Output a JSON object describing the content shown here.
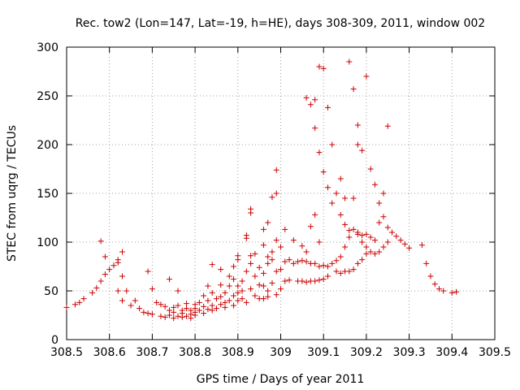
{
  "chart_data": {
    "type": "scatter",
    "title": "Rec. tow2 (Lon=147, Lat=-19, h=HE), days 308-309, 2011, window 002",
    "xlabel": "GPS time / Days of year 2011",
    "ylabel": "STEC from uqrg / TECUs",
    "xlim": [
      308.5,
      309.5
    ],
    "ylim": [
      0,
      300
    ],
    "xticks": [
      308.5,
      308.6,
      308.7,
      308.8,
      308.9,
      309,
      309.1,
      309.2,
      309.3,
      309.4,
      309.5
    ],
    "xtick_labels": [
      "308.5",
      "308.6",
      "308.7",
      "308.8",
      "308.9",
      "309",
      "309.1",
      "309.2",
      "309.3",
      "309.4",
      "309.5"
    ],
    "yticks": [
      0,
      50,
      100,
      150,
      200,
      250,
      300
    ],
    "ytick_labels": [
      "0",
      "50",
      "100",
      "150",
      "200",
      "250",
      "300"
    ],
    "marker": "+",
    "color": "#cc0000",
    "points": [
      [
        308.5,
        33
      ],
      [
        308.52,
        36
      ],
      [
        308.53,
        38
      ],
      [
        308.54,
        42
      ],
      [
        308.56,
        48
      ],
      [
        308.57,
        53
      ],
      [
        308.58,
        60
      ],
      [
        308.58,
        101
      ],
      [
        308.59,
        85
      ],
      [
        308.59,
        67
      ],
      [
        308.6,
        72
      ],
      [
        308.61,
        76
      ],
      [
        308.62,
        82
      ],
      [
        308.62,
        79
      ],
      [
        308.62,
        50
      ],
      [
        308.63,
        90
      ],
      [
        308.63,
        65
      ],
      [
        308.63,
        40
      ],
      [
        308.64,
        50
      ],
      [
        308.65,
        35
      ],
      [
        308.66,
        40
      ],
      [
        308.67,
        32
      ],
      [
        308.68,
        28
      ],
      [
        308.69,
        70
      ],
      [
        308.69,
        27
      ],
      [
        308.7,
        52
      ],
      [
        308.7,
        26
      ],
      [
        308.71,
        38
      ],
      [
        308.72,
        24
      ],
      [
        308.72,
        36
      ],
      [
        308.73,
        23
      ],
      [
        308.73,
        34
      ],
      [
        308.74,
        25
      ],
      [
        308.74,
        30
      ],
      [
        308.74,
        62
      ],
      [
        308.75,
        22
      ],
      [
        308.75,
        33
      ],
      [
        308.75,
        28
      ],
      [
        308.76,
        50
      ],
      [
        308.76,
        24
      ],
      [
        308.76,
        35
      ],
      [
        308.77,
        30
      ],
      [
        308.77,
        23
      ],
      [
        308.77,
        27
      ],
      [
        308.78,
        24
      ],
      [
        308.78,
        32
      ],
      [
        308.78,
        37
      ],
      [
        308.79,
        26
      ],
      [
        308.79,
        30
      ],
      [
        308.79,
        22
      ],
      [
        308.8,
        36
      ],
      [
        308.8,
        32
      ],
      [
        308.8,
        25
      ],
      [
        308.8,
        28
      ],
      [
        308.81,
        38
      ],
      [
        308.81,
        30
      ],
      [
        308.82,
        45
      ],
      [
        308.82,
        34
      ],
      [
        308.82,
        27
      ],
      [
        308.83,
        40
      ],
      [
        308.83,
        55
      ],
      [
        308.83,
        31
      ],
      [
        308.84,
        77
      ],
      [
        308.84,
        48
      ],
      [
        308.84,
        35
      ],
      [
        308.84,
        30
      ],
      [
        308.85,
        42
      ],
      [
        308.85,
        32
      ],
      [
        308.86,
        72
      ],
      [
        308.86,
        56
      ],
      [
        308.86,
        44
      ],
      [
        308.86,
        36
      ],
      [
        308.87,
        48
      ],
      [
        308.87,
        38
      ],
      [
        308.87,
        33
      ],
      [
        308.88,
        65
      ],
      [
        308.88,
        55
      ],
      [
        308.88,
        40
      ],
      [
        308.89,
        75
      ],
      [
        308.89,
        62
      ],
      [
        308.89,
        45
      ],
      [
        308.89,
        35
      ],
      [
        308.9,
        86
      ],
      [
        308.9,
        82
      ],
      [
        308.9,
        55
      ],
      [
        308.9,
        48
      ],
      [
        308.9,
        40
      ],
      [
        308.91,
        60
      ],
      [
        308.91,
        50
      ],
      [
        308.91,
        42
      ],
      [
        308.92,
        107
      ],
      [
        308.92,
        104
      ],
      [
        308.92,
        70
      ],
      [
        308.92,
        38
      ],
      [
        308.93,
        134
      ],
      [
        308.93,
        130
      ],
      [
        308.93,
        86
      ],
      [
        308.93,
        78
      ],
      [
        308.93,
        52
      ],
      [
        308.94,
        88
      ],
      [
        308.94,
        65
      ],
      [
        308.94,
        45
      ],
      [
        308.95,
        74
      ],
      [
        308.95,
        56
      ],
      [
        308.95,
        42
      ],
      [
        308.96,
        113
      ],
      [
        308.96,
        97
      ],
      [
        308.96,
        68
      ],
      [
        308.96,
        55
      ],
      [
        308.96,
        42
      ],
      [
        308.97,
        120
      ],
      [
        308.97,
        85
      ],
      [
        308.97,
        78
      ],
      [
        308.97,
        50
      ],
      [
        308.97,
        44
      ],
      [
        308.98,
        146
      ],
      [
        308.98,
        90
      ],
      [
        308.98,
        82
      ],
      [
        308.98,
        58
      ],
      [
        308.99,
        174
      ],
      [
        308.99,
        150
      ],
      [
        308.99,
        102
      ],
      [
        308.99,
        70
      ],
      [
        308.99,
        46
      ],
      [
        309.0,
        95
      ],
      [
        309.0,
        72
      ],
      [
        309.0,
        52
      ],
      [
        309.01,
        113
      ],
      [
        309.01,
        80
      ],
      [
        309.01,
        60
      ],
      [
        309.02,
        82
      ],
      [
        309.02,
        61
      ],
      [
        309.03,
        102
      ],
      [
        309.03,
        78
      ],
      [
        309.04,
        80
      ],
      [
        309.04,
        60
      ],
      [
        309.05,
        96
      ],
      [
        309.05,
        81
      ],
      [
        309.05,
        60
      ],
      [
        309.06,
        248
      ],
      [
        309.06,
        90
      ],
      [
        309.06,
        80
      ],
      [
        309.06,
        59
      ],
      [
        309.07,
        241
      ],
      [
        309.07,
        116
      ],
      [
        309.07,
        78
      ],
      [
        309.07,
        60
      ],
      [
        309.08,
        246
      ],
      [
        309.08,
        217
      ],
      [
        309.08,
        128
      ],
      [
        309.08,
        78
      ],
      [
        309.08,
        60
      ],
      [
        309.09,
        280
      ],
      [
        309.09,
        192
      ],
      [
        309.09,
        100
      ],
      [
        309.09,
        75
      ],
      [
        309.09,
        61
      ],
      [
        309.1,
        278
      ],
      [
        309.1,
        172
      ],
      [
        309.1,
        76
      ],
      [
        309.1,
        62
      ],
      [
        309.11,
        238
      ],
      [
        309.11,
        156
      ],
      [
        309.11,
        75
      ],
      [
        309.11,
        65
      ],
      [
        309.12,
        200
      ],
      [
        309.12,
        140
      ],
      [
        309.12,
        78
      ],
      [
        309.13,
        150
      ],
      [
        309.13,
        81
      ],
      [
        309.13,
        70
      ],
      [
        309.14,
        165
      ],
      [
        309.14,
        128
      ],
      [
        309.14,
        85
      ],
      [
        309.14,
        68
      ],
      [
        309.15,
        145
      ],
      [
        309.15,
        118
      ],
      [
        309.15,
        95
      ],
      [
        309.15,
        70
      ],
      [
        309.16,
        285
      ],
      [
        309.16,
        112
      ],
      [
        309.16,
        105
      ],
      [
        309.16,
        70
      ],
      [
        309.17,
        257
      ],
      [
        309.17,
        145
      ],
      [
        309.17,
        113
      ],
      [
        309.17,
        72
      ],
      [
        309.18,
        220
      ],
      [
        309.18,
        200
      ],
      [
        309.18,
        110
      ],
      [
        309.18,
        108
      ],
      [
        309.18,
        78
      ],
      [
        309.19,
        194
      ],
      [
        309.19,
        107
      ],
      [
        309.19,
        100
      ],
      [
        309.19,
        82
      ],
      [
        309.2,
        270
      ],
      [
        309.2,
        108
      ],
      [
        309.2,
        95
      ],
      [
        309.2,
        88
      ],
      [
        309.21,
        175
      ],
      [
        309.21,
        105
      ],
      [
        309.21,
        90
      ],
      [
        309.22,
        159
      ],
      [
        309.22,
        102
      ],
      [
        309.22,
        88
      ],
      [
        309.23,
        140
      ],
      [
        309.23,
        120
      ],
      [
        309.23,
        90
      ],
      [
        309.24,
        150
      ],
      [
        309.24,
        126
      ],
      [
        309.24,
        95
      ],
      [
        309.25,
        219
      ],
      [
        309.25,
        115
      ],
      [
        309.25,
        100
      ],
      [
        309.26,
        110
      ],
      [
        309.27,
        106
      ],
      [
        309.28,
        102
      ],
      [
        309.29,
        98
      ],
      [
        309.3,
        94
      ],
      [
        309.33,
        97
      ],
      [
        309.34,
        78
      ],
      [
        309.35,
        65
      ],
      [
        309.36,
        57
      ],
      [
        309.37,
        52
      ],
      [
        309.38,
        50
      ],
      [
        309.4,
        48
      ],
      [
        309.41,
        49
      ]
    ]
  }
}
